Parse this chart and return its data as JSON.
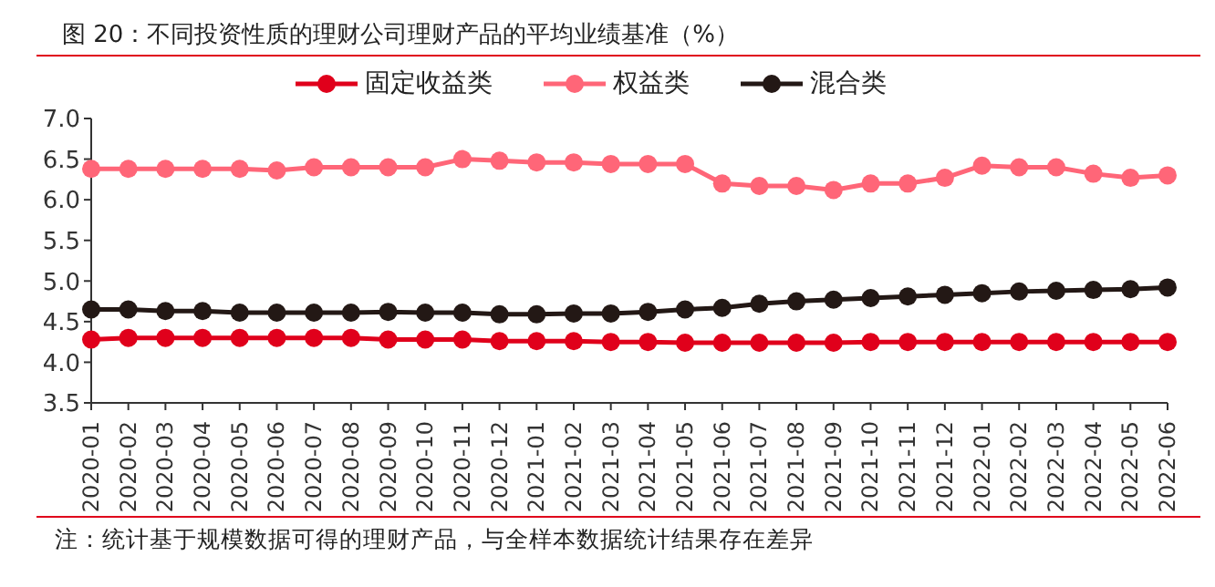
{
  "chart_data": {
    "type": "line",
    "title": "图 20：不同投资性质的理财公司理财产品的平均业绩基准（%）",
    "categories": [
      "2020-01",
      "2020-02",
      "2020-03",
      "2020-04",
      "2020-05",
      "2020-06",
      "2020-07",
      "2020-08",
      "2020-09",
      "2020-10",
      "2020-11",
      "2020-12",
      "2021-01",
      "2021-02",
      "2021-03",
      "2021-04",
      "2021-05",
      "2021-06",
      "2021-07",
      "2021-08",
      "2021-09",
      "2021-10",
      "2021-11",
      "2021-12",
      "2022-01",
      "2022-02",
      "2022-03",
      "2022-04",
      "2022-05",
      "2022-06"
    ],
    "series": [
      {
        "name": "固定收益类",
        "color": "#e0001b",
        "values": [
          4.28,
          4.3,
          4.3,
          4.3,
          4.3,
          4.3,
          4.3,
          4.3,
          4.28,
          4.28,
          4.28,
          4.26,
          4.26,
          4.26,
          4.25,
          4.25,
          4.24,
          4.24,
          4.24,
          4.24,
          4.24,
          4.25,
          4.25,
          4.25,
          4.25,
          4.25,
          4.25,
          4.25,
          4.25,
          4.25
        ]
      },
      {
        "name": "混合类",
        "color": "#231815",
        "values": [
          4.65,
          4.65,
          4.63,
          4.63,
          4.61,
          4.61,
          4.61,
          4.61,
          4.62,
          4.61,
          4.61,
          4.59,
          4.59,
          4.6,
          4.6,
          4.62,
          4.65,
          4.67,
          4.72,
          4.75,
          4.77,
          4.79,
          4.81,
          4.83,
          4.85,
          4.87,
          4.88,
          4.89,
          4.9,
          4.92
        ]
      },
      {
        "name": "权益类",
        "color": "#ff6678",
        "values": [
          6.38,
          6.38,
          6.38,
          6.38,
          6.38,
          6.36,
          6.4,
          6.4,
          6.4,
          6.4,
          6.5,
          6.48,
          6.46,
          6.46,
          6.44,
          6.44,
          6.44,
          6.2,
          6.17,
          6.17,
          6.12,
          6.2,
          6.2,
          6.27,
          6.42,
          6.4,
          6.4,
          6.32,
          6.27,
          6.3
        ]
      }
    ],
    "ylim": [
      3.5,
      7.0
    ],
    "yticks": [
      {
        "value": 3.5,
        "label": "3.5"
      },
      {
        "value": 4.0,
        "label": "4.0"
      },
      {
        "value": 4.5,
        "label": "4.5"
      },
      {
        "value": 5.0,
        "label": "5.0"
      },
      {
        "value": 5.5,
        "label": "5.5"
      },
      {
        "value": 6.0,
        "label": "6.0"
      },
      {
        "value": 6.5,
        "label": "6.5"
      },
      {
        "value": 7.0,
        "label": "7.0"
      }
    ],
    "grid": false,
    "legend": "top",
    "marker": "circle",
    "line_style": "solid",
    "annotations": [
      "注：统计基于规模数据可得的理财产品，与全样本数据统计结果存在差异"
    ]
  }
}
